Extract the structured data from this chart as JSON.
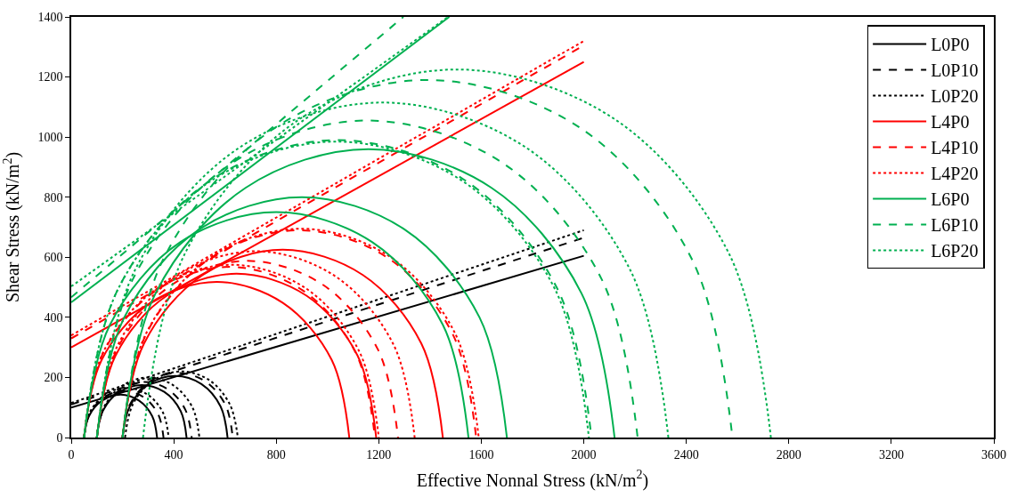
{
  "chart_data": {
    "type": "line",
    "xlabel": "Effective Nonnal Stress (kN/m$^{2}$)",
    "ylabel": "Shear Stress (kN/m$^{2}$)",
    "xlim": [
      0,
      3600
    ],
    "xticks": [
      0,
      400,
      800,
      1200,
      1600,
      2000,
      2400,
      2800,
      3200,
      3600
    ],
    "ylim": [
      0,
      1400
    ],
    "yticks": [
      0,
      200,
      400,
      600,
      800,
      1000,
      1200,
      1400
    ],
    "legend": "top right",
    "series": [
      {
        "name": "L0P0",
        "color": "#000000",
        "line_style": "solid",
        "x": [
          0,
          2000
        ],
        "values": [
          100,
          605
        ]
      },
      {
        "name": "L0P10",
        "color": "#000000",
        "line_style": "dashed",
        "x": [
          0,
          2000
        ],
        "values": [
          110,
          665
        ]
      },
      {
        "name": "L0P20",
        "color": "#000000",
        "line_style": "dotted",
        "x": [
          0,
          2000
        ],
        "values": [
          115,
          690
        ]
      },
      {
        "name": "L4P0",
        "color": "#ff0000",
        "line_style": "solid",
        "x": [
          0,
          2000
        ],
        "values": [
          300,
          1250
        ]
      },
      {
        "name": "L4P10",
        "color": "#ff0000",
        "line_style": "dashed",
        "x": [
          0,
          2000
        ],
        "values": [
          330,
          1305
        ]
      },
      {
        "name": "L4P20",
        "color": "#ff0000",
        "line_style": "dotted",
        "x": [
          0,
          2000
        ],
        "values": [
          340,
          1320
        ]
      },
      {
        "name": "L6P0",
        "color": "#00b050",
        "line_style": "solid",
        "x": [
          0,
          1475
        ],
        "values": [
          450,
          1400
        ]
      },
      {
        "name": "L6P10",
        "color": "#00b050",
        "line_style": "dashed",
        "x": [
          0,
          1296
        ],
        "values": [
          467,
          1400
        ]
      },
      {
        "name": "L6P20",
        "color": "#00b050",
        "line_style": "dotted",
        "x": [
          0,
          1470
        ],
        "values": [
          503,
          1400
        ]
      },
      {
        "color": "#000000",
        "line_style": "solid",
        "x": [
          50,
          69,
          121,
          193,
          264,
          316,
          335
        ],
        "values": [
          0,
          71,
          123,
          143,
          123,
          71,
          0
        ]
      },
      {
        "color": "#000000",
        "line_style": "solid",
        "x": [
          100,
          123,
          188,
          275,
          363,
          427,
          450
        ],
        "values": [
          0,
          88,
          152,
          175,
          152,
          88,
          0
        ]
      },
      {
        "color": "#000000",
        "line_style": "solid",
        "x": [
          200,
          228,
          303,
          405,
          508,
          583,
          610
        ],
        "values": [
          0,
          103,
          178,
          205,
          178,
          103,
          0
        ]
      },
      {
        "color": "#000000",
        "line_style": "dashed",
        "x": [
          50,
          71,
          128,
          205,
          283,
          339,
          360
        ],
        "values": [
          0,
          78,
          134,
          155,
          134,
          78,
          0
        ]
      },
      {
        "color": "#000000",
        "line_style": "dashed",
        "x": [
          100,
          125,
          193,
          285,
          378,
          445,
          470
        ],
        "values": [
          0,
          93,
          160,
          185,
          160,
          93,
          0
        ]
      },
      {
        "color": "#000000",
        "line_style": "dashed",
        "x": [
          200,
          228,
          307,
          415,
          523,
          602,
          630
        ],
        "values": [
          0,
          108,
          187,
          215,
          187,
          108,
          0
        ]
      },
      {
        "color": "#000000",
        "line_style": "dotted",
        "x": [
          50,
          72,
          133,
          215,
          298,
          358,
          380
        ],
        "values": [
          0,
          83,
          143,
          165,
          143,
          83,
          0
        ]
      },
      {
        "color": "#000000",
        "line_style": "dotted",
        "x": [
          100,
          127,
          200,
          300,
          400,
          473,
          500
        ],
        "values": [
          0,
          100,
          173,
          200,
          173,
          100,
          0
        ]
      },
      {
        "color": "#000000",
        "line_style": "dotted",
        "x": [
          210,
          240,
          321,
          430,
          539,
          619,
          650
        ],
        "values": [
          0,
          110,
          191,
          220,
          191,
          110,
          0
        ]
      },
      {
        "color": "#ff0000",
        "line_style": "solid",
        "x": [
          50,
          119,
          309,
          568,
          826,
          1016,
          1085
        ],
        "values": [
          0,
          259,
          448,
          518,
          448,
          259,
          0
        ]
      },
      {
        "color": "#ff0000",
        "line_style": "solid",
        "x": [
          100,
          173,
          373,
          645,
          918,
          1117,
          1190
        ],
        "values": [
          0,
          273,
          472,
          545,
          472,
          273,
          0
        ]
      },
      {
        "color": "#ff0000",
        "line_style": "solid",
        "x": [
          200,
          284,
          513,
          825,
          1138,
          1366,
          1450
        ],
        "values": [
          0,
          313,
          541,
          625,
          541,
          313,
          0
        ]
      },
      {
        "color": "#ff0000",
        "line_style": "dashed",
        "x": [
          50,
          126,
          334,
          618,
          901,
          1109,
          1185
        ],
        "values": [
          0,
          284,
          491,
          568,
          491,
          284,
          0
        ]
      },
      {
        "color": "#ff0000",
        "line_style": "dashed",
        "x": [
          100,
          179,
          394,
          688,
          981,
          1196,
          1275
        ],
        "values": [
          0,
          294,
          509,
          588,
          509,
          294,
          0
        ]
      },
      {
        "color": "#ff0000",
        "line_style": "dashed",
        "x": [
          200,
          293,
          545,
          890,
          1235,
          1488,
          1580
        ],
        "values": [
          0,
          345,
          598,
          690,
          598,
          345,
          0
        ]
      },
      {
        "color": "#ff0000",
        "line_style": "dotted",
        "x": [
          50,
          127,
          338,
          625,
          913,
          1123,
          1200
        ],
        "values": [
          0,
          288,
          498,
          575,
          498,
          288,
          0
        ]
      },
      {
        "color": "#ff0000",
        "line_style": "dotted",
        "x": [
          100,
          183,
          410,
          720,
          1030,
          1257,
          1340
        ],
        "values": [
          0,
          310,
          537,
          620,
          537,
          310,
          0
        ]
      },
      {
        "color": "#ff0000",
        "line_style": "dotted",
        "x": [
          200,
          293,
          548,
          895,
          1243,
          1497,
          1590
        ],
        "values": [
          0,
          348,
          602,
          695,
          602,
          348,
          0
        ]
      },
      {
        "color": "#00b050",
        "line_style": "solid",
        "x": [
          50,
          151,
          425,
          800,
          1175,
          1450,
          1550
        ],
        "values": [
          0,
          375,
          650,
          750,
          650,
          375,
          0
        ]
      },
      {
        "color": "#00b050",
        "line_style": "solid",
        "x": [
          100,
          207,
          500,
          900,
          1300,
          1593,
          1700
        ],
        "values": [
          0,
          400,
          693,
          800,
          693,
          400,
          0
        ]
      },
      {
        "color": "#00b050",
        "line_style": "solid",
        "x": [
          200,
          329,
          680,
          1160,
          1640,
          1991,
          2120
        ],
        "values": [
          0,
          480,
          831,
          960,
          831,
          480,
          0
        ]
      },
      {
        "color": "#00b050",
        "line_style": "dashed",
        "x": [
          50,
          183,
          545,
          1040,
          1535,
          1897,
          2030
        ],
        "values": [
          0,
          495,
          857,
          990,
          857,
          495,
          0
        ]
      },
      {
        "color": "#00b050",
        "line_style": "dashed",
        "x": [
          100,
          241,
          628,
          1155,
          1683,
          2069,
          2210
        ],
        "values": [
          0,
          528,
          914,
          1055,
          914,
          528,
          0
        ]
      },
      {
        "color": "#00b050",
        "line_style": "dashed",
        "x": [
          200,
          360,
          795,
          1390,
          1985,
          2421,
          2580
        ],
        "values": [
          0,
          595,
          1031,
          1190,
          1031,
          595,
          0
        ]
      },
      {
        "color": "#00b050",
        "line_style": "dotted",
        "x": [
          50,
          182,
          543,
          1035,
          1528,
          1888,
          2020
        ],
        "values": [
          0,
          493,
          853,
          985,
          853,
          493,
          0
        ]
      },
      {
        "color": "#00b050",
        "line_style": "dotted",
        "x": [
          100,
          249,
          658,
          1215,
          1773,
          2181,
          2330
        ],
        "values": [
          0,
          558,
          966,
          1115,
          966,
          558,
          0
        ]
      },
      {
        "color": "#00b050",
        "line_style": "dotted",
        "x": [
          280,
          444,
          893,
          1505,
          2118,
          2566,
          2730
        ],
        "values": [
          0,
          613,
          1061,
          1225,
          1061,
          613,
          0
        ]
      }
    ]
  }
}
